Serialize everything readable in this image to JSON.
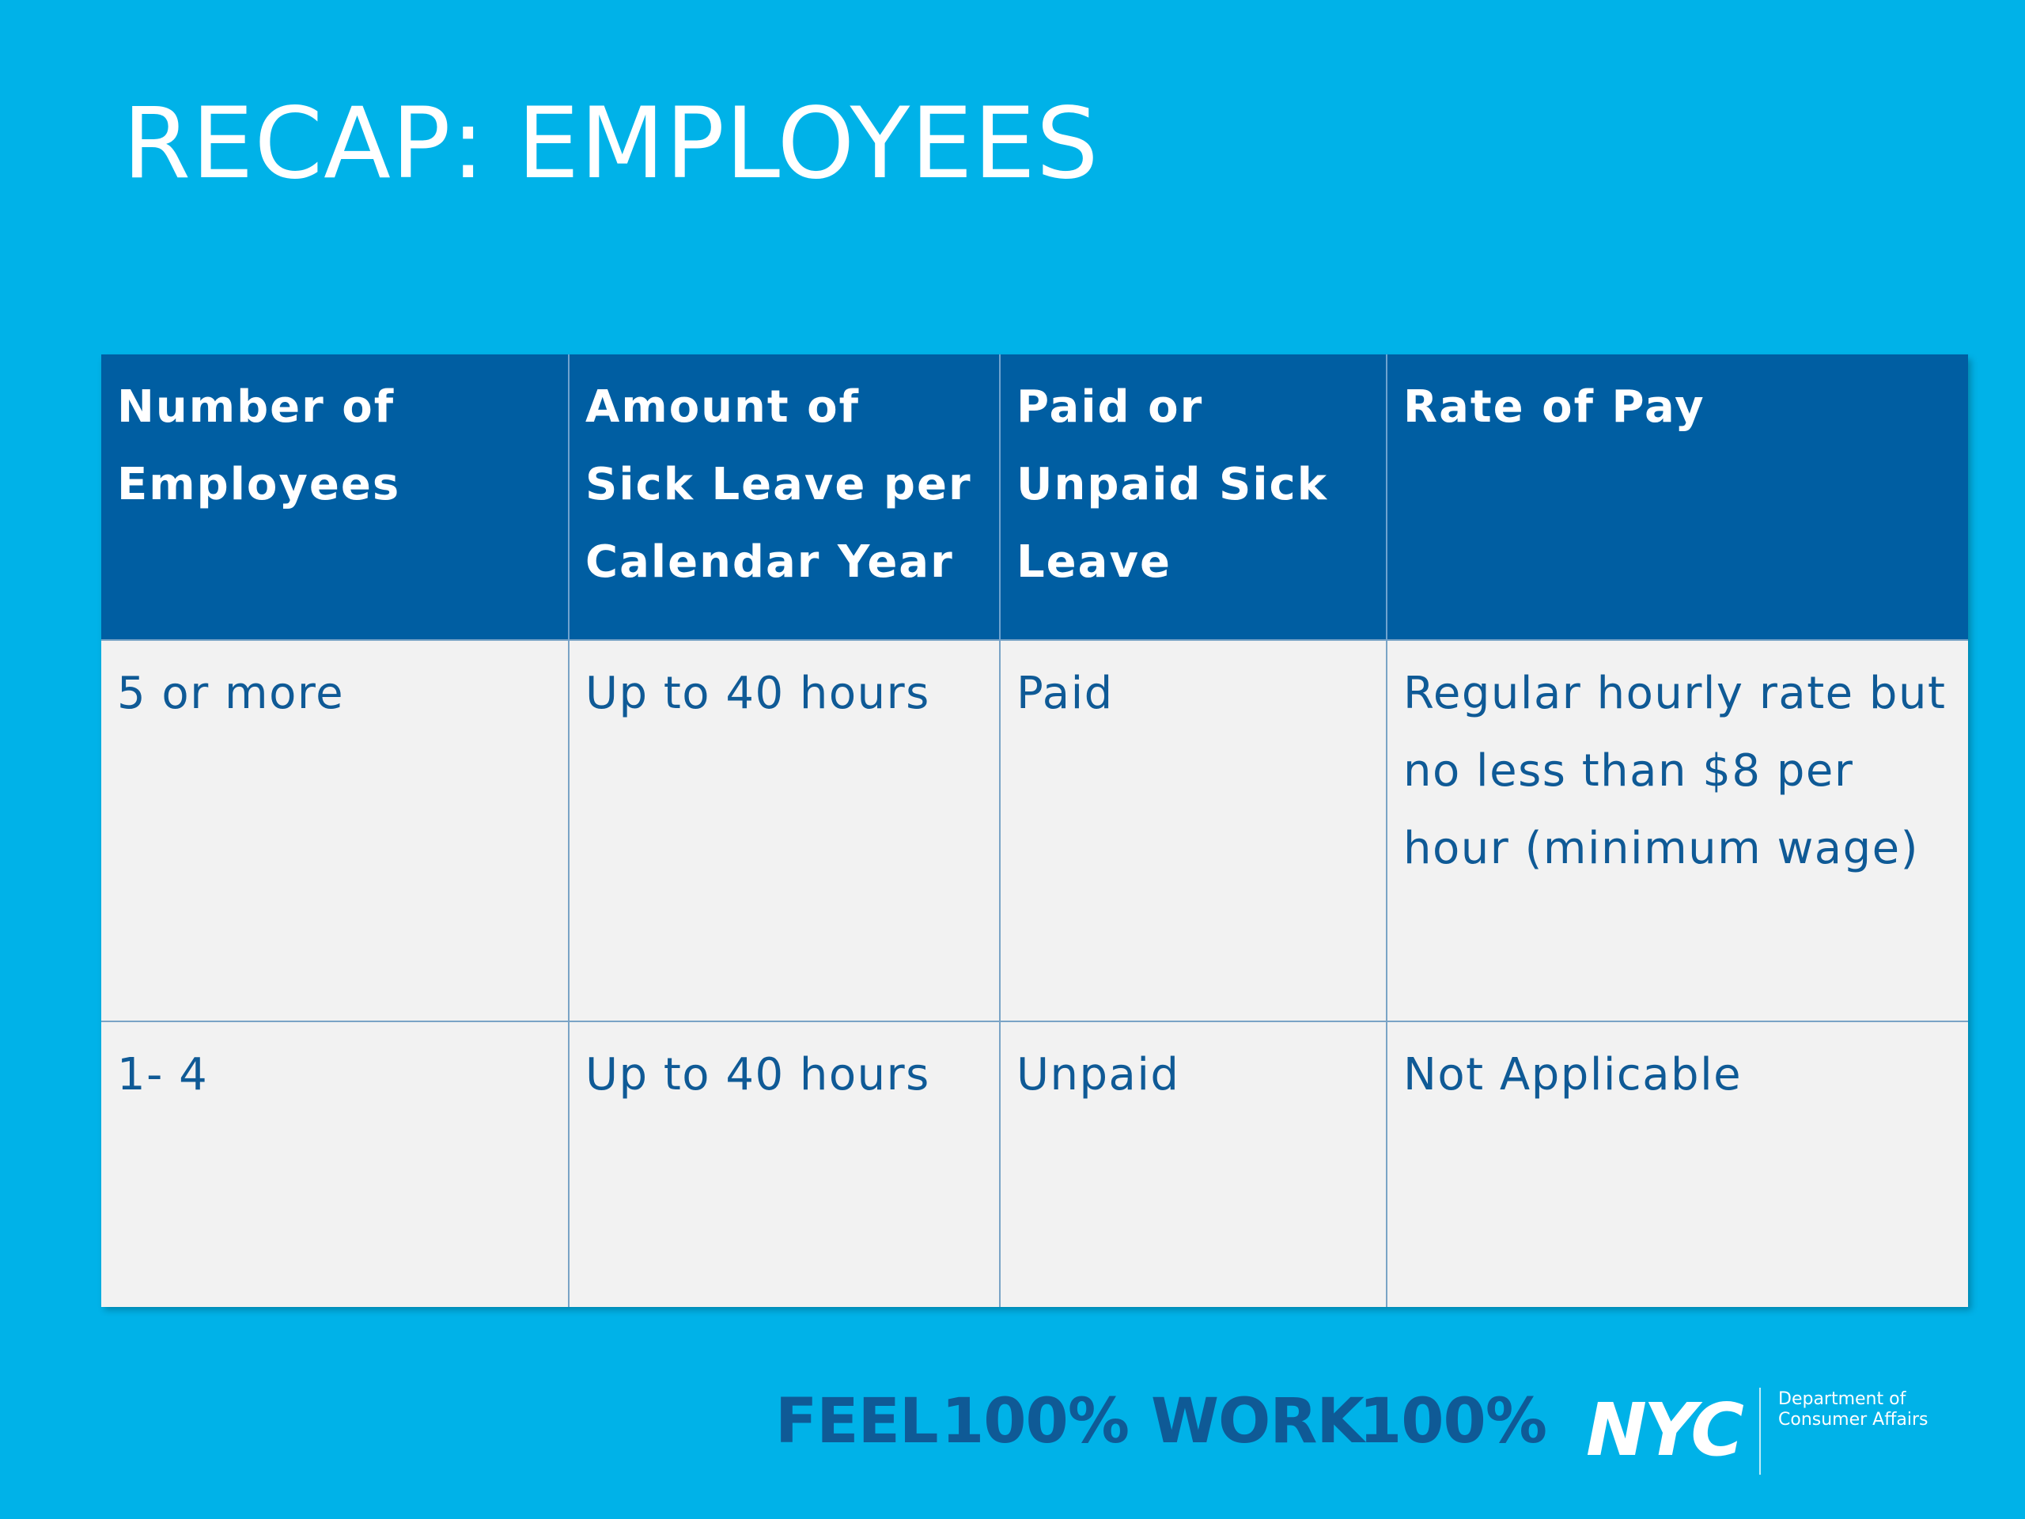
{
  "slide": {
    "title": "RECAP: EMPLOYEES"
  },
  "table": {
    "headers": [
      "Number of Employees",
      "Amount of Sick Leave per Calendar Year",
      "Paid or Unpaid Sick Leave",
      "Rate of Pay"
    ],
    "rows": [
      [
        "5 or more",
        "Up to 40 hours",
        "Paid",
        "Regular hourly rate but no less than $8 per hour (minimum wage)"
      ],
      [
        "1- 4",
        "Up to 40 hours",
        "Unpaid",
        "Not Applicable"
      ]
    ]
  },
  "footer": {
    "feel_word": "FEEL",
    "feel_num": "100%",
    "work_word": "WORK",
    "work_num": "100%",
    "nyc_logo": "NYC",
    "dept_line1": "Department of",
    "dept_line2": "Consumer Affairs"
  },
  "colors": {
    "background": "#00b2e8",
    "header_bg": "#005ea2",
    "cell_bg": "#f2f2f2",
    "cell_text": "#0f5a96"
  }
}
